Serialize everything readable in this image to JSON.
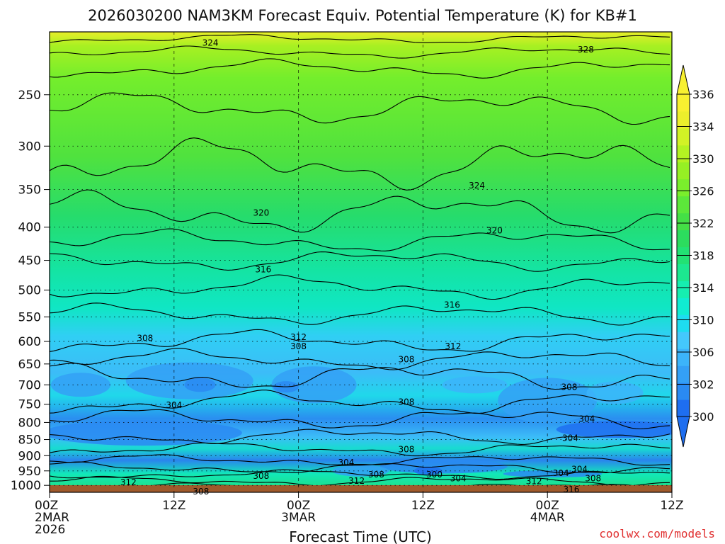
{
  "title": "2026030200 NAM3KM Forecast Equiv. Potential Temperature (K) for KB#1",
  "credit": "coolwx.com/models",
  "chart_data": {
    "type": "heatmap",
    "title": "2026030200 NAM3KM Forecast Equiv. Potential Temperature (K) for KB#1",
    "xlabel": "Forecast Time (UTC)",
    "ylabel": "",
    "x_ticks": [
      {
        "hour": 0,
        "lines": [
          "00Z",
          "2MAR",
          "2026"
        ]
      },
      {
        "hour": 12,
        "lines": [
          "12Z"
        ]
      },
      {
        "hour": 24,
        "lines": [
          "00Z",
          "3MAR"
        ]
      },
      {
        "hour": 36,
        "lines": [
          "12Z"
        ]
      },
      {
        "hour": 48,
        "lines": [
          "00Z",
          "4MAR"
        ]
      },
      {
        "hour": 60,
        "lines": [
          "12Z"
        ]
      }
    ],
    "xlim": [
      0,
      60
    ],
    "y_ticks": [
      "250",
      "300",
      "350",
      "400",
      "450",
      "500",
      "550",
      "600",
      "650",
      "700",
      "750",
      "800",
      "850",
      "900",
      "950",
      "1000"
    ],
    "ylim_hpa": [
      1025,
      200
    ],
    "yscale": "log",
    "grid": "dotted horizontal at pressure ticks, dashed vertical at 12-hour ticks",
    "colorbar": {
      "labels": [
        "336",
        "334",
        "330",
        "326",
        "322",
        "318",
        "314",
        "310",
        "306",
        "302",
        "300"
      ],
      "levels": [
        300,
        302,
        304,
        306,
        308,
        310,
        312,
        314,
        316,
        318,
        320,
        322,
        324,
        326,
        328,
        330,
        332,
        334,
        336
      ],
      "colors": [
        "#1e6ef0",
        "#2a8af2",
        "#34a0f6",
        "#3cb4fa",
        "#44c8fc",
        "#1edcf0",
        "#10ecd2",
        "#16eeb0",
        "#1ce890",
        "#22e274",
        "#2cdc5e",
        "#44e046",
        "#5ce83a",
        "#7aee2c",
        "#96f024",
        "#b4f222",
        "#d2f226",
        "#ecee2c",
        "#f8f030"
      ]
    },
    "contour_labels": [
      {
        "text": "324",
        "hour": 15.5,
        "hpa": 208
      },
      {
        "text": "328",
        "hour": 51.7,
        "hpa": 213
      },
      {
        "text": "324",
        "hour": 41.2,
        "hpa": 345
      },
      {
        "text": "320",
        "hour": 20.4,
        "hpa": 380
      },
      {
        "text": "320",
        "hour": 42.9,
        "hpa": 405
      },
      {
        "text": "316",
        "hour": 20.6,
        "hpa": 465
      },
      {
        "text": "316",
        "hour": 38.8,
        "hpa": 527
      },
      {
        "text": "308",
        "hour": 9.2,
        "hpa": 593
      },
      {
        "text": "312",
        "hour": 24.0,
        "hpa": 591
      },
      {
        "text": "308",
        "hour": 24.0,
        "hpa": 611
      },
      {
        "text": "312",
        "hour": 38.9,
        "hpa": 611
      },
      {
        "text": "308",
        "hour": 34.4,
        "hpa": 640
      },
      {
        "text": "308",
        "hour": 34.4,
        "hpa": 744
      },
      {
        "text": "304",
        "hour": 12.0,
        "hpa": 752
      },
      {
        "text": "308",
        "hour": 50.1,
        "hpa": 706
      },
      {
        "text": "304",
        "hour": 51.8,
        "hpa": 790
      },
      {
        "text": "304",
        "hour": 50.2,
        "hpa": 846
      },
      {
        "text": "308",
        "hour": 34.4,
        "hpa": 880
      },
      {
        "text": "304",
        "hour": 28.6,
        "hpa": 922
      },
      {
        "text": "308",
        "hour": 31.5,
        "hpa": 962
      },
      {
        "text": "300",
        "hour": 37.1,
        "hpa": 963
      },
      {
        "text": "304",
        "hour": 39.4,
        "hpa": 976
      },
      {
        "text": "308",
        "hour": 20.4,
        "hpa": 967
      },
      {
        "text": "312",
        "hour": 7.6,
        "hpa": 990
      },
      {
        "text": "312",
        "hour": 29.6,
        "hpa": 984
      },
      {
        "text": "312",
        "hour": 46.7,
        "hpa": 986
      },
      {
        "text": "304",
        "hour": 49.3,
        "hpa": 958
      },
      {
        "text": "304",
        "hour": 51.1,
        "hpa": 945
      },
      {
        "text": "308",
        "hour": 52.4,
        "hpa": 976
      },
      {
        "text": "316",
        "hour": 50.3,
        "hpa": 1015
      },
      {
        "text": "308",
        "hour": 14.6,
        "hpa": 1022
      }
    ],
    "ground_color": "#a05a2c"
  }
}
